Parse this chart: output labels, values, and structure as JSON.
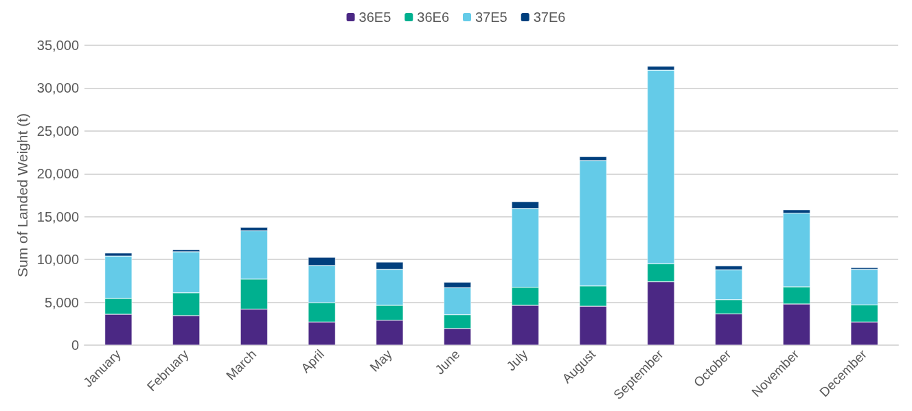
{
  "chart_data": {
    "type": "bar",
    "stacked": true,
    "ylabel": "Sum of Landed Weight (t)",
    "legend": "top",
    "grid": "y",
    "categories": [
      "January",
      "February",
      "March",
      "April",
      "May",
      "June",
      "July",
      "August",
      "September",
      "October",
      "November",
      "December"
    ],
    "ylim": [
      0,
      35000
    ],
    "yticks": [
      0,
      {
        "value": 5000,
        "label": "5,000"
      },
      {
        "value": 10000,
        "label": "10,000"
      },
      {
        "value": 15000,
        "label": "15,000"
      },
      {
        "value": 20000,
        "label": "20,000"
      },
      {
        "value": 25000,
        "label": "25,000"
      },
      {
        "value": 30000,
        "label": "30,000"
      },
      {
        "value": 35000,
        "label": "35,000"
      }
    ],
    "series": [
      {
        "name": "36E5",
        "color": "#4b2884",
        "values": [
          3600,
          3450,
          4200,
          2700,
          2900,
          1950,
          4650,
          4550,
          7400,
          3650,
          4800,
          2700
        ]
      },
      {
        "name": "36E6",
        "color": "#00b08f",
        "values": [
          1850,
          2650,
          3500,
          2250,
          1750,
          1600,
          2100,
          2350,
          2100,
          1650,
          2000,
          2000
        ]
      },
      {
        "name": "37E5",
        "color": "#64cbe8",
        "values": [
          4950,
          4800,
          5650,
          4350,
          4200,
          3150,
          9200,
          14650,
          22600,
          3500,
          8600,
          4150
        ]
      },
      {
        "name": "37E6",
        "color": "#003f7d",
        "values": [
          350,
          250,
          400,
          950,
          850,
          650,
          800,
          450,
          450,
          450,
          400,
          200
        ]
      }
    ]
  }
}
